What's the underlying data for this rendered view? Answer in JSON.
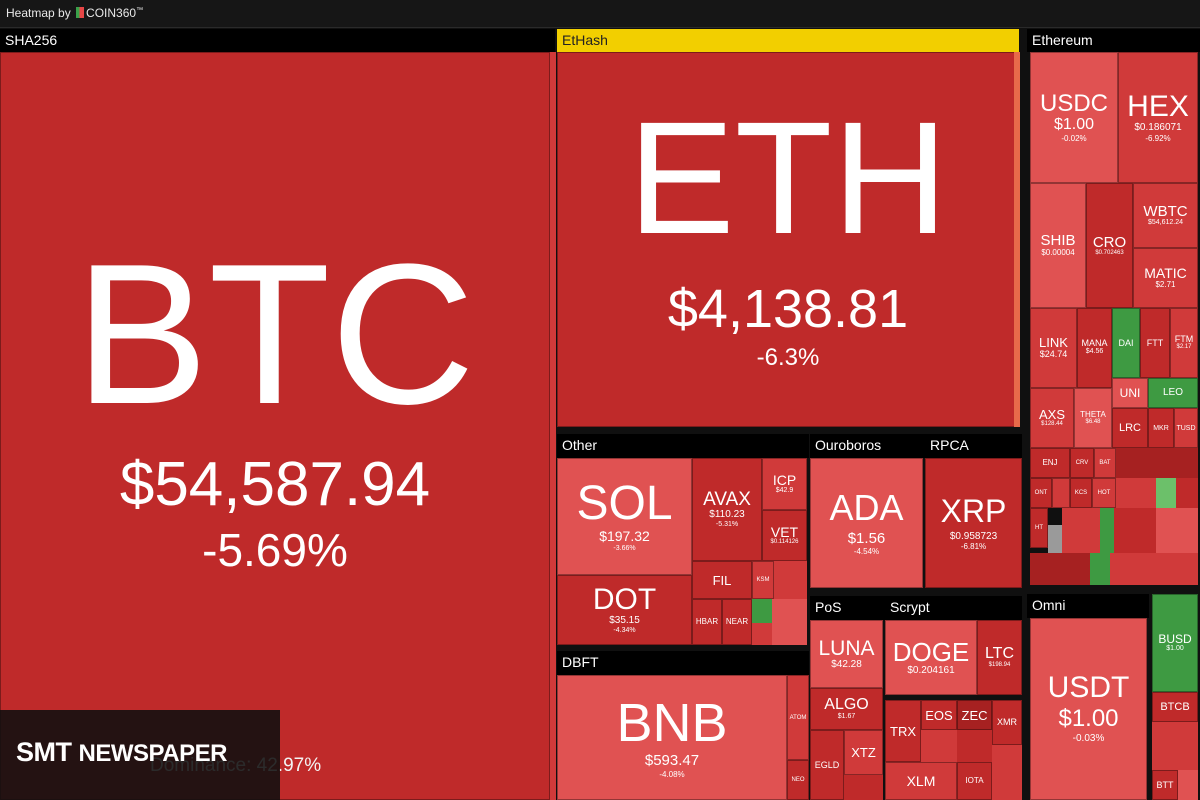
{
  "header": {
    "title": "Heatmap by",
    "brand": "COIN360",
    "tm": "™"
  },
  "groups": {
    "sha256": "SHA256",
    "ethash": "EtHash",
    "ethereum": "Ethereum",
    "other": "Other",
    "ouroboros": "Ouroboros",
    "rpca": "RPCA",
    "dbft": "DBFT",
    "pos": "PoS",
    "scrypt": "Scrypt",
    "omni": "Omni"
  },
  "coins": {
    "btc": {
      "symbol": "BTC",
      "price": "$54,587.94",
      "change": "-5.69%"
    },
    "eth": {
      "symbol": "ETH",
      "price": "$4,138.81",
      "change": "-6.3%"
    },
    "usdc": {
      "symbol": "USDC",
      "price": "$1.00",
      "change": "-0.02%"
    },
    "hex": {
      "symbol": "HEX",
      "price": "$0.186071",
      "change": "-6.92%"
    },
    "shib": {
      "symbol": "SHIB",
      "price": "$0.00004"
    },
    "cro": {
      "symbol": "CRO",
      "price": "$0.702463"
    },
    "wbtc": {
      "symbol": "WBTC",
      "price": "$54,612.24"
    },
    "matic": {
      "symbol": "MATIC",
      "price": "$2.71"
    },
    "link": {
      "symbol": "LINK",
      "price": "$24.74"
    },
    "mana": {
      "symbol": "MANA",
      "price": "$4.56"
    },
    "dai": {
      "symbol": "DAI"
    },
    "ftt": {
      "symbol": "FTT"
    },
    "ftm": {
      "symbol": "FTM",
      "price": "$2.17"
    },
    "uni": {
      "symbol": "UNI"
    },
    "leo": {
      "symbol": "LEO"
    },
    "axs": {
      "symbol": "AXS",
      "price": "$128.44"
    },
    "theta": {
      "symbol": "THETA",
      "price": "$6.48"
    },
    "lrc": {
      "symbol": "LRC"
    },
    "mkr": {
      "symbol": "MKR"
    },
    "tusd": {
      "symbol": "TUSD"
    },
    "enj": {
      "symbol": "ENJ"
    },
    "crv": {
      "symbol": "CRV"
    },
    "bat": {
      "symbol": "BAT"
    },
    "ont": {
      "symbol": "ONT"
    },
    "kcs": {
      "symbol": "KCS"
    },
    "hot": {
      "symbol": "HOT"
    },
    "ht": {
      "symbol": "HT"
    },
    "sol": {
      "symbol": "SOL",
      "price": "$197.32",
      "change": "-3.66%"
    },
    "avax": {
      "symbol": "AVAX",
      "price": "$110.23",
      "change": "-5.31%"
    },
    "icp": {
      "symbol": "ICP",
      "price": "$42.9"
    },
    "vet": {
      "symbol": "VET",
      "price": "$0.114126"
    },
    "dot": {
      "symbol": "DOT",
      "price": "$35.15",
      "change": "-4.34%"
    },
    "fil": {
      "symbol": "FIL"
    },
    "ksm": {
      "symbol": "KSM"
    },
    "hbar": {
      "symbol": "HBAR"
    },
    "near": {
      "symbol": "NEAR"
    },
    "ada": {
      "symbol": "ADA",
      "price": "$1.56",
      "change": "-4.54%"
    },
    "xrp": {
      "symbol": "XRP",
      "price": "$0.958723",
      "change": "-6.81%"
    },
    "bnb": {
      "symbol": "BNB",
      "price": "$593.47",
      "change": "-4.08%"
    },
    "atom": {
      "symbol": "ATOM"
    },
    "neo": {
      "symbol": "NEO"
    },
    "luna": {
      "symbol": "LUNA",
      "price": "$42.28"
    },
    "algo": {
      "symbol": "ALGO",
      "price": "$1.67"
    },
    "egld": {
      "symbol": "EGLD"
    },
    "xtz": {
      "symbol": "XTZ"
    },
    "doge": {
      "symbol": "DOGE",
      "price": "$0.204161"
    },
    "ltc": {
      "symbol": "LTC",
      "price": "$198.94"
    },
    "trx": {
      "symbol": "TRX"
    },
    "eos": {
      "symbol": "EOS"
    },
    "zec": {
      "symbol": "ZEC"
    },
    "xmr": {
      "symbol": "XMR"
    },
    "xlm": {
      "symbol": "XLM"
    },
    "iota": {
      "symbol": "IOTA"
    },
    "usdt": {
      "symbol": "USDT",
      "price": "$1.00",
      "change": "-0.03%"
    },
    "busd": {
      "symbol": "BUSD",
      "price": "$1.00"
    },
    "btcb": {
      "symbol": "BTCB"
    },
    "btt": {
      "symbol": "BTT"
    }
  },
  "dominance": "Dominance: 42.97%",
  "watermark": {
    "part1": "SMT",
    "part2": "NEWSPAPER"
  }
}
